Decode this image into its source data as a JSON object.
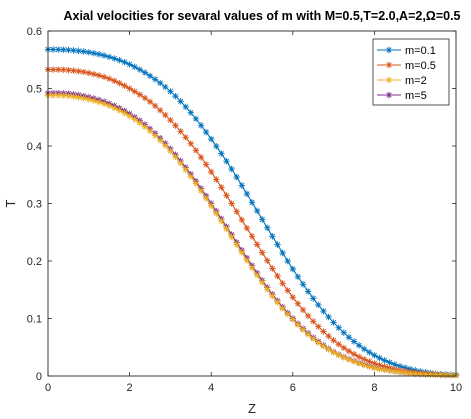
{
  "chart_data": {
    "type": "line",
    "title": "Axial velocities for sevaral values of m with M=0.5,T=2.0,A=2,Ω=0.5",
    "xlabel": "Z",
    "ylabel": "T",
    "xlim": [
      0,
      10
    ],
    "ylim": [
      0,
      0.6
    ],
    "xticks": [
      0,
      2,
      4,
      6,
      8,
      10
    ],
    "yticks": [
      0,
      0.1,
      0.2,
      0.3,
      0.4,
      0.5,
      0.6
    ],
    "xtick_labels": [
      "0",
      "2",
      "4",
      "6",
      "8",
      "10"
    ],
    "ytick_labels": [
      "0",
      "0.1",
      "0.2",
      "0.3",
      "0.4",
      "0.5",
      "0.6"
    ],
    "grid": false,
    "legend_position": "top-right",
    "marker": "asterisk",
    "series": [
      {
        "name": "m=0.1",
        "color": "#0072BD",
        "x": [
          0,
          0.5,
          1,
          1.5,
          2,
          2.5,
          3,
          3.5,
          4,
          4.5,
          5,
          5.5,
          6,
          6.5,
          7,
          7.5,
          8,
          8.5,
          9,
          9.5,
          10
        ],
        "y": [
          0.568,
          0.567,
          0.563,
          0.555,
          0.542,
          0.522,
          0.495,
          0.458,
          0.412,
          0.36,
          0.302,
          0.243,
          0.186,
          0.135,
          0.093,
          0.06,
          0.036,
          0.02,
          0.01,
          0.004,
          0.002
        ]
      },
      {
        "name": "m=0.5",
        "color": "#D95319",
        "x": [
          0,
          0.5,
          1,
          1.5,
          2,
          2.5,
          3,
          3.5,
          4,
          4.5,
          5,
          5.5,
          6,
          6.5,
          7,
          7.5,
          8,
          8.5,
          9,
          9.5,
          10
        ],
        "y": [
          0.533,
          0.532,
          0.527,
          0.517,
          0.5,
          0.477,
          0.445,
          0.404,
          0.355,
          0.3,
          0.243,
          0.187,
          0.137,
          0.095,
          0.062,
          0.038,
          0.022,
          0.012,
          0.006,
          0.003,
          0.001
        ]
      },
      {
        "name": "m=2",
        "color": "#EDB120",
        "x": [
          0,
          0.5,
          1,
          1.5,
          2,
          2.5,
          3,
          3.5,
          4,
          4.5,
          5,
          5.5,
          6,
          6.5,
          7,
          7.5,
          8,
          8.5,
          9,
          9.5,
          10
        ],
        "y": [
          0.488,
          0.487,
          0.481,
          0.47,
          0.452,
          0.426,
          0.391,
          0.347,
          0.296,
          0.242,
          0.188,
          0.139,
          0.098,
          0.065,
          0.041,
          0.025,
          0.014,
          0.008,
          0.004,
          0.002,
          0.001
        ]
      },
      {
        "name": "m=5",
        "color": "#7E2F8E",
        "x": [
          0,
          0.5,
          1,
          1.5,
          2,
          2.5,
          3,
          3.5,
          4,
          4.5,
          5,
          5.5,
          6,
          6.5,
          7,
          7.5,
          8,
          8.5,
          9,
          9.5,
          10
        ],
        "y": [
          0.492,
          0.491,
          0.485,
          0.474,
          0.456,
          0.43,
          0.395,
          0.351,
          0.3,
          0.246,
          0.192,
          0.142,
          0.1,
          0.067,
          0.042,
          0.026,
          0.015,
          0.008,
          0.004,
          0.002,
          0.001
        ]
      }
    ]
  }
}
